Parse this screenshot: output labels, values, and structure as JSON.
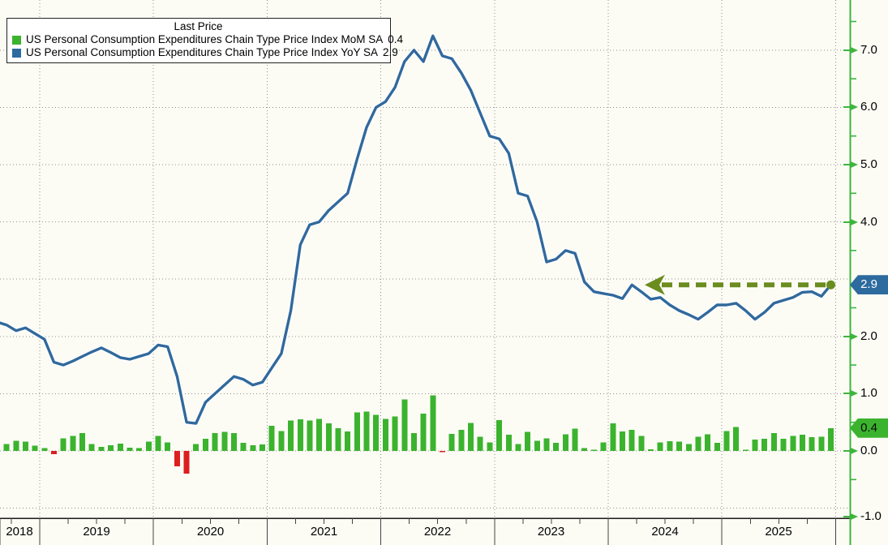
{
  "legend": {
    "title": "Last Price",
    "series": [
      {
        "label": "US Personal Consumption Expenditures Chain Type Price Index MoM SA",
        "last_price": "0.4",
        "swatch_color": "#3cb32e"
      },
      {
        "label": "US Personal Consumption Expenditures Chain Type Price Index YoY SA",
        "last_price": "2.9",
        "swatch_color": "#2d6b9e"
      }
    ]
  },
  "y_axis": {
    "side": "right",
    "axis_color": "#3db53d",
    "grid_values": [
      7,
      6,
      5,
      4,
      3,
      2,
      1,
      0,
      -1
    ],
    "tick_labels": [
      "7.0",
      "6.0",
      "5.0",
      "4.0",
      "2.0",
      "1.0",
      "0.0",
      "-1.0"
    ],
    "tick_values": [
      7,
      6,
      5,
      4,
      2,
      1,
      0,
      -1
    ],
    "minor_tick_step": 0.5,
    "badges": [
      {
        "text": "2.9",
        "value": 2.9,
        "bg": "#2d6b9e",
        "fg": "#ffffff"
      },
      {
        "text": "0.4",
        "value": 0.4,
        "bg": "#3cb32e",
        "fg": "#0a0a0a"
      }
    ]
  },
  "x_axis": {
    "tick_labels": [
      "2018",
      "2019",
      "2020",
      "2021",
      "2022",
      "2023",
      "2024",
      "2025"
    ]
  },
  "chart_data": [
    {
      "type": "line",
      "name": "US Personal Consumption Expenditures Chain Type Price Index YoY SA",
      "color": "#31699c",
      "freq": "monthly",
      "start": "2018-08",
      "end": "2025-12",
      "last_value": 2.9,
      "values": [
        2.25,
        2.2,
        2.1,
        2.15,
        2.05,
        1.95,
        1.55,
        1.5,
        1.57,
        1.65,
        1.73,
        1.8,
        1.72,
        1.63,
        1.6,
        1.65,
        1.7,
        1.85,
        1.82,
        1.3,
        0.5,
        0.48,
        0.85,
        1.0,
        1.15,
        1.3,
        1.25,
        1.15,
        1.2,
        1.45,
        1.7,
        2.45,
        3.6,
        3.95,
        4.0,
        4.2,
        4.35,
        4.5,
        5.1,
        5.65,
        6.0,
        6.1,
        6.35,
        6.8,
        7.0,
        6.8,
        7.25,
        6.9,
        6.85,
        6.6,
        6.3,
        5.9,
        5.5,
        5.45,
        5.2,
        4.5,
        4.45,
        4.0,
        3.3,
        3.35,
        3.5,
        3.45,
        2.95,
        2.78,
        2.75,
        2.72,
        2.66,
        2.9,
        2.78,
        2.65,
        2.68,
        2.55,
        2.45,
        2.38,
        2.3,
        2.42,
        2.55,
        2.55,
        2.58,
        2.45,
        2.3,
        2.42,
        2.58,
        2.63,
        2.68,
        2.77,
        2.78,
        2.7,
        2.9
      ]
    },
    {
      "type": "bar",
      "name": "US Personal Consumption Expenditures Chain Type Price Index MoM SA",
      "color": "#3cb32e",
      "negative_color": "#dc1f1f",
      "freq": "monthly",
      "start": "2018-08",
      "end": "2025-12",
      "last_value": 0.4,
      "values": [
        0.05,
        0.12,
        0.18,
        0.16,
        0.09,
        0.05,
        -0.06,
        0.22,
        0.26,
        0.31,
        0.12,
        0.07,
        0.1,
        0.13,
        0.06,
        0.05,
        0.16,
        0.26,
        0.15,
        -0.27,
        -0.4,
        0.12,
        0.21,
        0.31,
        0.33,
        0.31,
        0.14,
        0.1,
        0.11,
        0.44,
        0.35,
        0.53,
        0.55,
        0.53,
        0.56,
        0.48,
        0.4,
        0.34,
        0.67,
        0.69,
        0.63,
        0.56,
        0.6,
        0.9,
        0.31,
        0.65,
        0.97,
        -0.02,
        0.3,
        0.37,
        0.49,
        0.25,
        0.15,
        0.54,
        0.28,
        0.12,
        0.33,
        0.18,
        0.22,
        0.14,
        0.29,
        0.39,
        0.05,
        0.02,
        0.15,
        0.48,
        0.34,
        0.37,
        0.26,
        0.03,
        0.15,
        0.17,
        0.16,
        0.12,
        0.25,
        0.29,
        0.14,
        0.35,
        0.42,
        0.02,
        0.2,
        0.21,
        0.31,
        0.21,
        0.26,
        0.28,
        0.24,
        0.25,
        0.4
      ]
    }
  ],
  "annotation": {
    "type": "dashed-arrow",
    "level": 2.9,
    "from": "2025-12",
    "to": "2024-03",
    "color": "#6b8c1f"
  }
}
